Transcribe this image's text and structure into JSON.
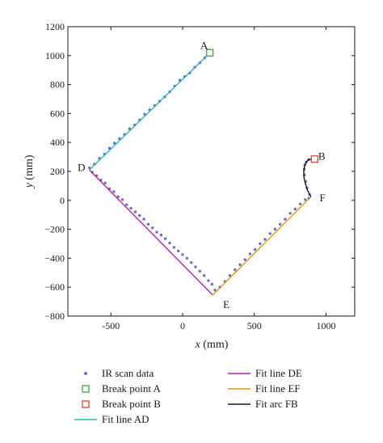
{
  "chart_data": {
    "type": "scatter",
    "title": "",
    "xlabel_var": "x",
    "xlabel_unit": " (mm)",
    "ylabel_var": "y",
    "ylabel_unit": " (mm)",
    "xlim": [
      -800,
      1200
    ],
    "ylim": [
      -800,
      1200
    ],
    "xticks": [
      -500,
      0,
      500,
      1000
    ],
    "yticks": [
      -800,
      -600,
      -400,
      -200,
      0,
      200,
      400,
      600,
      800,
      1000,
      1200
    ],
    "grid": false,
    "legend_position": "below",
    "colors": {
      "scan": "#6b6bd6",
      "break_a": "#2e9e2e",
      "break_b": "#e0321e",
      "fit_ad": "#2cb5b5",
      "fit_de": "#b5279b",
      "fit_ef": "#c9a21a",
      "fit_fb": "#1a1a1a"
    },
    "point_labels": [
      {
        "text": "A",
        "x": 150,
        "y": 1075
      },
      {
        "text": "B",
        "x": 970,
        "y": 310
      },
      {
        "text": "D",
        "x": -705,
        "y": 230
      },
      {
        "text": "E",
        "x": 305,
        "y": -715
      },
      {
        "text": "F",
        "x": 975,
        "y": 20
      }
    ],
    "break_points": [
      {
        "name": "Break point A",
        "x": 190,
        "y": 1020
      },
      {
        "name": "Break point B",
        "x": 920,
        "y": 285
      }
    ],
    "fit_lines": [
      {
        "name": "Fit line AD",
        "x": [
          -650,
          170
        ],
        "y": [
          210,
          1000
        ]
      },
      {
        "name": "Fit line DE",
        "x": [
          -650,
          210
        ],
        "y": [
          210,
          -655
        ]
      },
      {
        "name": "Fit line EF",
        "x": [
          210,
          895
        ],
        "y": [
          -655,
          25
        ]
      }
    ],
    "fit_arc": {
      "name": "Fit arc FB",
      "x": [
        895,
        870,
        855,
        845,
        845,
        850,
        860,
        875,
        895
      ],
      "y": [
        25,
        70,
        120,
        165,
        205,
        235,
        260,
        278,
        285
      ]
    },
    "legend": [
      {
        "label": "IR scan data",
        "kind": "dot",
        "color_key": "scan"
      },
      {
        "label": "Fit line DE",
        "kind": "line",
        "color_key": "fit_de"
      },
      {
        "label": "Break point A",
        "kind": "square",
        "color_key": "break_a"
      },
      {
        "label": "Fit line EF",
        "kind": "line",
        "color_key": "fit_ef"
      },
      {
        "label": "Break point B",
        "kind": "square",
        "color_key": "break_b"
      },
      {
        "label": "Fit arc FB",
        "kind": "line",
        "color_key": "fit_fb"
      },
      {
        "label": "Fit line AD",
        "kind": "line",
        "color_key": "fit_ad"
      }
    ],
    "scan_points": {
      "x": [
        -650,
        -615,
        -580,
        -545,
        -510,
        -475,
        -440,
        -405,
        -370,
        -335,
        -300,
        -265,
        -230,
        -195,
        -160,
        -125,
        -90,
        -55,
        -20,
        15,
        50,
        85,
        120,
        155,
        -630,
        -600,
        -570,
        -540,
        -510,
        -480,
        -450,
        -420,
        -390,
        -360,
        -330,
        -300,
        -270,
        -240,
        -210,
        -180,
        -150,
        -120,
        -90,
        -60,
        -30,
        0,
        30,
        60,
        90,
        120,
        150,
        180,
        205,
        225,
        260,
        295,
        330,
        365,
        400,
        435,
        470,
        505,
        540,
        575,
        610,
        645,
        680,
        715,
        750,
        785,
        820,
        855,
        880,
        885,
        868,
        858,
        850,
        848,
        852,
        862,
        878
      ],
      "y": [
        225,
        250,
        290,
        320,
        360,
        395,
        425,
        455,
        495,
        520,
        555,
        595,
        625,
        655,
        685,
        715,
        750,
        790,
        830,
        855,
        880,
        920,
        950,
        985,
        195,
        170,
        140,
        120,
        80,
        60,
        25,
        5,
        -30,
        -55,
        -80,
        -105,
        -130,
        -165,
        -190,
        -220,
        -240,
        -265,
        -295,
        -325,
        -350,
        -375,
        -400,
        -430,
        -460,
        -490,
        -520,
        -555,
        -580,
        -620,
        -600,
        -560,
        -520,
        -480,
        -445,
        -410,
        -370,
        -340,
        -300,
        -270,
        -230,
        -200,
        -165,
        -130,
        -90,
        -60,
        -25,
        5,
        15,
        40,
        85,
        130,
        175,
        215,
        245,
        265,
        282
      ]
    }
  }
}
